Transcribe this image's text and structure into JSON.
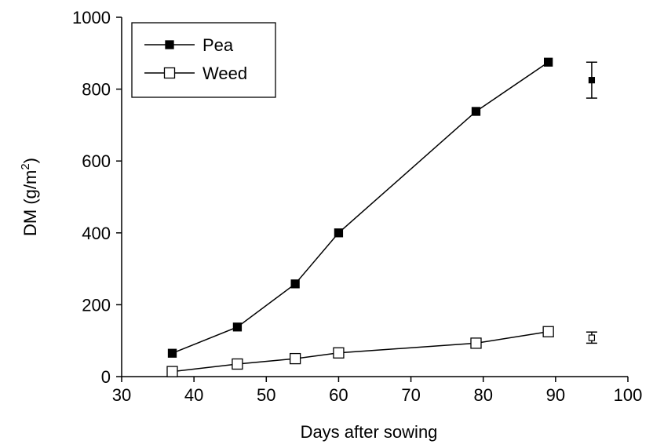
{
  "chart_data": {
    "type": "line",
    "xlabel": "Days after sowing",
    "ylabel": "DM (g/m",
    "ylabel_superscript": "2",
    "ylabel_suffix": ")",
    "xlim": [
      30,
      100
    ],
    "ylim": [
      0,
      1000
    ],
    "xticks": [
      "30",
      "40",
      "50",
      "60",
      "70",
      "80",
      "90",
      "100"
    ],
    "yticks": [
      "0",
      "200",
      "400",
      "600",
      "800",
      "1000"
    ],
    "grid": false,
    "legend_position": "top-left",
    "series": [
      {
        "name": "Pea",
        "marker": "filled-square",
        "color": "#000000",
        "x": [
          37,
          46,
          54,
          60,
          79,
          89
        ],
        "y": [
          65,
          138,
          258,
          400,
          738,
          875
        ]
      },
      {
        "name": "Weed",
        "marker": "open-square",
        "color": "#000000",
        "x": [
          37,
          46,
          54,
          60,
          79,
          89
        ],
        "y": [
          14,
          35,
          50,
          66,
          93,
          125
        ]
      }
    ],
    "error_bars": [
      {
        "series": "Pea",
        "x": 95,
        "y": 825,
        "low": 775,
        "high": 875
      },
      {
        "series": "Weed",
        "x": 95,
        "y": 108,
        "low": 93,
        "high": 124
      }
    ]
  }
}
